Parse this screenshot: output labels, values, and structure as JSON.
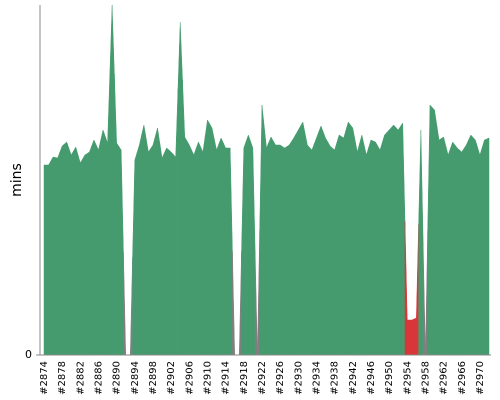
{
  "chart_data": {
    "type": "area",
    "y_label": "mins",
    "categories": [
      "#2874",
      null,
      null,
      null,
      "#2878",
      null,
      null,
      null,
      "#2882",
      null,
      null,
      null,
      "#2886",
      null,
      null,
      null,
      "#2890",
      null,
      null,
      null,
      "#2894",
      null,
      null,
      null,
      "#2898",
      null,
      null,
      null,
      "#2902",
      null,
      null,
      null,
      "#2906",
      null,
      null,
      null,
      "#2910",
      null,
      null,
      null,
      "#2914",
      null,
      null,
      null,
      "#2918",
      null,
      null,
      null,
      "#2922",
      null,
      null,
      null,
      "#2926",
      null,
      null,
      null,
      "#2930",
      null,
      null,
      null,
      "#2934",
      null,
      null,
      null,
      "#2938",
      null,
      null,
      null,
      "#2942",
      null,
      null,
      null,
      "#2946",
      null,
      null,
      null,
      "#2950",
      null,
      null,
      null,
      "#2954",
      null,
      null,
      null,
      "#2958",
      null,
      null,
      null,
      "#2962",
      null,
      null,
      null,
      "#2966",
      null,
      null,
      null,
      "#2970",
      null,
      null
    ],
    "values": [
      19.0,
      19.0,
      19.8,
      19.7,
      20.9,
      21.3,
      20.0,
      20.8,
      19.2,
      20.0,
      20.3,
      21.5,
      20.5,
      22.5,
      21.2,
      35.0,
      21.2,
      20.5,
      0,
      0,
      19.5,
      21.0,
      23.0,
      20.3,
      21.0,
      22.7,
      19.7,
      20.7,
      20.3,
      19.8,
      33.3,
      21.8,
      21.0,
      20.0,
      21.3,
      20.3,
      23.5,
      22.7,
      20.5,
      21.7,
      20.7,
      20.7,
      0,
      0,
      20.7,
      22.0,
      20.7,
      0,
      25.0,
      20.7,
      21.8,
      21.0,
      21.0,
      20.7,
      21.0,
      21.7,
      22.5,
      23.3,
      21.0,
      20.5,
      21.7,
      22.9,
      21.7,
      20.9,
      20.5,
      22.0,
      21.7,
      23.3,
      22.7,
      20.3,
      22.0,
      20.0,
      21.5,
      21.3,
      20.5,
      22.0,
      22.5,
      23.0,
      22.5,
      23.2,
      3.5,
      3.5,
      3.7,
      22.5,
      0,
      25.0,
      24.5,
      21.5,
      21.8,
      20.0,
      21.3,
      20.7,
      20.3,
      21.0,
      22.0,
      21.5,
      20.0,
      21.5,
      21.7
    ],
    "colors": [
      "#459b6e",
      "#459b6e",
      "#459b6e",
      "#459b6e",
      "#459b6e",
      "#459b6e",
      "#459b6e",
      "#459b6e",
      "#459b6e",
      "#459b6e",
      "#459b6e",
      "#459b6e",
      "#459b6e",
      "#459b6e",
      "#459b6e",
      "#459b6e",
      "#459b6e",
      "#459b6e",
      "#7f7f7f",
      "#7f7f7f",
      "#459b6e",
      "#459b6e",
      "#459b6e",
      "#459b6e",
      "#459b6e",
      "#459b6e",
      "#459b6e",
      "#459b6e",
      "#459b6e",
      "#459b6e",
      "#459b6e",
      "#459b6e",
      "#459b6e",
      "#459b6e",
      "#459b6e",
      "#459b6e",
      "#459b6e",
      "#459b6e",
      "#459b6e",
      "#459b6e",
      "#459b6e",
      "#459b6e",
      "#7f7f7f",
      "#7f7f7f",
      "#459b6e",
      "#459b6e",
      "#459b6e",
      "#7f7f7f",
      "#459b6e",
      "#459b6e",
      "#459b6e",
      "#459b6e",
      "#459b6e",
      "#459b6e",
      "#459b6e",
      "#459b6e",
      "#459b6e",
      "#459b6e",
      "#459b6e",
      "#459b6e",
      "#459b6e",
      "#459b6e",
      "#459b6e",
      "#459b6e",
      "#459b6e",
      "#459b6e",
      "#459b6e",
      "#459b6e",
      "#459b6e",
      "#459b6e",
      "#459b6e",
      "#459b6e",
      "#459b6e",
      "#459b6e",
      "#459b6e",
      "#459b6e",
      "#459b6e",
      "#459b6e",
      "#459b6e",
      "#459b6e",
      "#d9363a",
      "#d9363a",
      "#d9363a",
      "#459b6e",
      "#7f7f7f",
      "#459b6e",
      "#459b6e",
      "#459b6e",
      "#459b6e",
      "#459b6e",
      "#459b6e",
      "#459b6e",
      "#459b6e",
      "#459b6e",
      "#459b6e",
      "#459b6e",
      "#459b6e",
      "#459b6e",
      "#459b6e"
    ],
    "ylim": [
      0,
      35
    ],
    "yticks": [
      0
    ]
  }
}
